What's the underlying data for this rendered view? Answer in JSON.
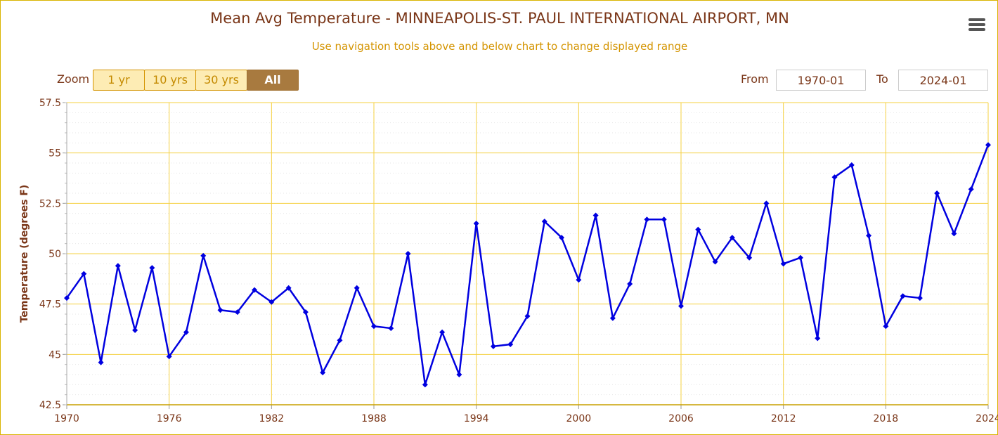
{
  "header": {
    "title": "Mean Avg Temperature - MINNEAPOLIS-ST. PAUL INTERNATIONAL AIRPORT, MN",
    "subtitle": "Use navigation tools above and below chart to change displayed range",
    "menu_icon": "hamburger-menu-icon"
  },
  "zoom": {
    "label": "Zoom",
    "buttons": [
      {
        "label": "1 yr",
        "active": false
      },
      {
        "label": "10 yrs",
        "active": false
      },
      {
        "label": "30 yrs",
        "active": false
      },
      {
        "label": "All",
        "active": true
      }
    ]
  },
  "range": {
    "from_label": "From",
    "from_value": "1970-01",
    "to_label": "To",
    "to_value": "2024-01"
  },
  "colors": {
    "series": "#0000e0",
    "grid": "#f5d040",
    "text": "#7a3618",
    "accent": "#d49400"
  },
  "chart_data": {
    "type": "line",
    "title": "Mean Avg Temperature - MINNEAPOLIS-ST. PAUL INTERNATIONAL AIRPORT, MN",
    "xlabel": "",
    "ylabel": "Temperature (degrees F)",
    "xlim": [
      1970,
      2024
    ],
    "ylim": [
      42.5,
      57.5
    ],
    "x_ticks": [
      1970,
      1976,
      1982,
      1988,
      1994,
      2000,
      2006,
      2012,
      2018,
      2024
    ],
    "y_ticks": [
      42.5,
      45,
      47.5,
      50,
      52.5,
      55,
      57.5
    ],
    "y_tick_labels": [
      "42.5",
      "45",
      "47.5",
      "50",
      "52.5",
      "55",
      "57.5"
    ],
    "grid": true,
    "series": [
      {
        "name": "",
        "x": [
          1970,
          1971,
          1972,
          1973,
          1974,
          1975,
          1976,
          1977,
          1978,
          1979,
          1980,
          1981,
          1982,
          1983,
          1984,
          1985,
          1986,
          1987,
          1988,
          1989,
          1990,
          1991,
          1992,
          1993,
          1994,
          1995,
          1996,
          1997,
          1998,
          1999,
          2000,
          2001,
          2002,
          2003,
          2004,
          2005,
          2006,
          2007,
          2008,
          2009,
          2010,
          2011,
          2012,
          2013,
          2014,
          2015,
          2016,
          2017,
          2018,
          2019,
          2020,
          2021,
          2022,
          2023,
          2024
        ],
        "values": [
          47.8,
          49.0,
          44.6,
          49.4,
          46.2,
          49.3,
          44.9,
          46.1,
          49.9,
          47.2,
          47.1,
          48.2,
          47.6,
          48.3,
          47.1,
          44.1,
          45.7,
          48.3,
          46.4,
          46.3,
          50.0,
          43.5,
          46.1,
          44.0,
          51.5,
          45.4,
          45.5,
          46.9,
          51.6,
          50.8,
          48.7,
          51.9,
          46.8,
          48.5,
          51.7,
          51.7,
          47.4,
          51.2,
          49.6,
          50.8,
          49.8,
          52.5,
          49.5,
          49.8,
          45.8,
          53.8,
          54.4,
          50.9,
          46.4,
          47.9,
          47.8,
          53.0,
          51.0,
          53.2,
          55.4
        ]
      }
    ]
  }
}
